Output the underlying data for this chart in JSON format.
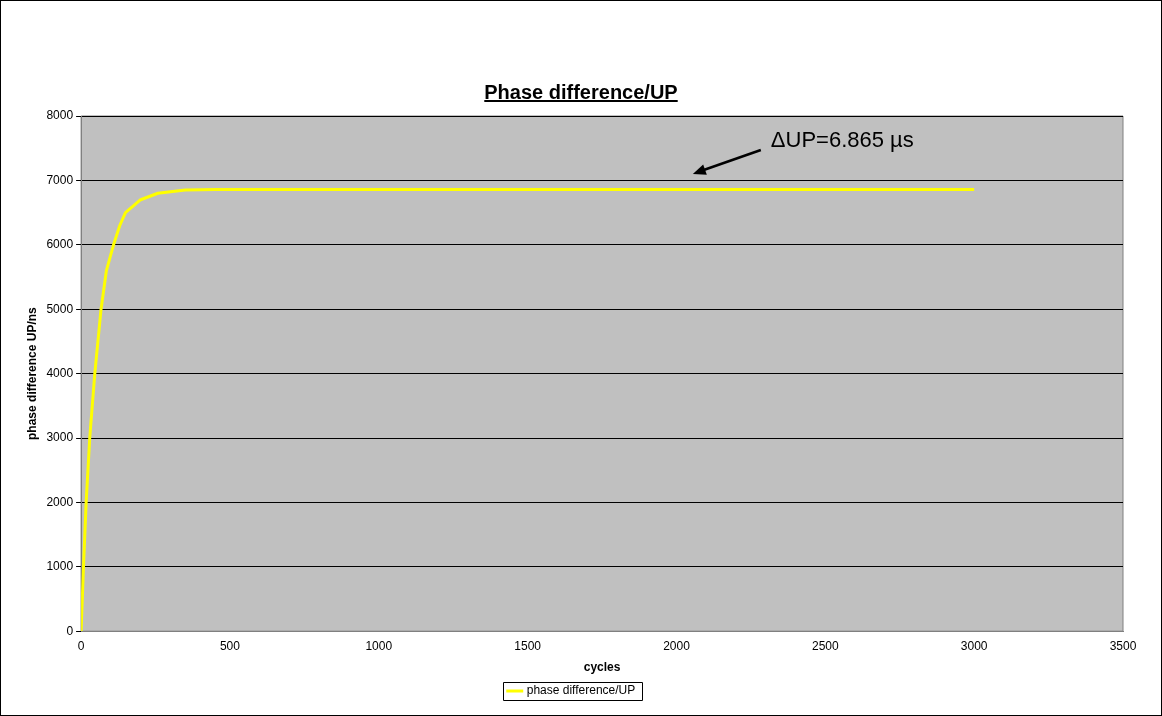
{
  "chart_data": {
    "type": "line",
    "title": "Phase difference/UP",
    "xlabel": "cycles",
    "ylabel": "phase difference UP/ns",
    "x": [
      0,
      8,
      17,
      29,
      46,
      67,
      85,
      109,
      130,
      149,
      200,
      258,
      350,
      450,
      3000
    ],
    "series": [
      {
        "name": "phase difference/UP",
        "color": "#ffff00",
        "values": [
          0,
          1000,
          2000,
          3000,
          4000,
          5000,
          5600,
          6000,
          6300,
          6500,
          6700,
          6800,
          6850,
          6860,
          6860
        ]
      }
    ],
    "xlim": [
      0,
      3500
    ],
    "xticks": [
      0,
      500,
      1000,
      1500,
      2000,
      2500,
      3000,
      3500
    ],
    "ylim": [
      0,
      8000
    ],
    "yticks": [
      0,
      1000,
      2000,
      3000,
      4000,
      5000,
      6000,
      7000,
      8000
    ],
    "annotations": [
      "ΔUP=6.865 µs"
    ],
    "grid": "y",
    "legend": "bottom",
    "marker": "none",
    "line_style": "solid"
  }
}
